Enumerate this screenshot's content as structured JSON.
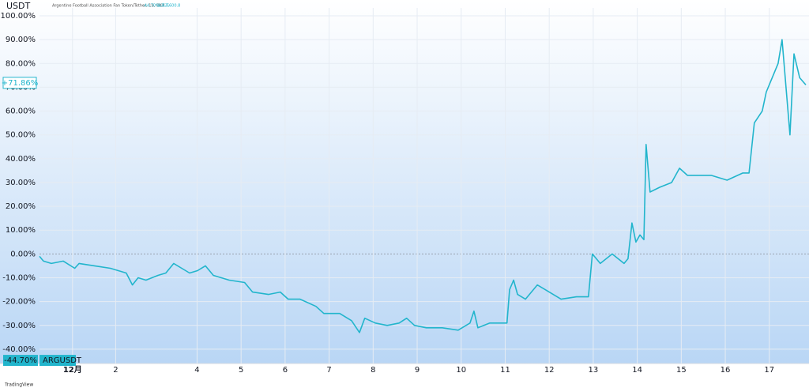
{
  "chart_data": {
    "type": "line",
    "title": "Argentine Football Association Fan Token/Tether, 1S, OKX",
    "volume_text": "出来高600.8",
    "unit": "USDT",
    "watermark": "TradingView",
    "last_value": 71.86,
    "last_label": "+71.86%",
    "compare_value": -44.7,
    "compare_label": "-44.70%",
    "compare_name": "ARGUSDT",
    "xlim": [
      0.42,
      17.83
    ],
    "xticks": [
      {
        "value": 1.17,
        "label": "12月"
      },
      {
        "value": 2.15,
        "label": "2"
      },
      4,
      5,
      6,
      7,
      8,
      9,
      10,
      11,
      12,
      13,
      14,
      15,
      16,
      17
    ],
    "ylim": [
      -46,
      102
    ],
    "yticks": [
      {
        "value": 100,
        "label": "100.00%"
      },
      {
        "value": 90,
        "label": "90.00%"
      },
      {
        "value": 80,
        "label": "80.00%"
      },
      {
        "value": 70,
        "label": "70.00%"
      },
      {
        "value": 60,
        "label": "60.00%"
      },
      {
        "value": 50,
        "label": "50.00%"
      },
      {
        "value": 40,
        "label": "40.00%"
      },
      {
        "value": 30,
        "label": "30.00%"
      },
      {
        "value": 20,
        "label": "20.00%"
      },
      {
        "value": 10,
        "label": "10.00%"
      },
      {
        "value": 0,
        "label": "0.00%"
      },
      {
        "value": -10,
        "label": "-10.00%"
      },
      {
        "value": -20,
        "label": "-20.00%"
      },
      {
        "value": -30,
        "label": "-30.00%"
      },
      {
        "value": -40,
        "label": "-40.00%"
      }
    ],
    "grid": true,
    "x": [
      0.42,
      0.51,
      0.69,
      0.96,
      1.22,
      1.32,
      1.67,
      2.03,
      2.39,
      2.53,
      2.66,
      2.84,
      3.11,
      3.29,
      3.47,
      3.65,
      3.83,
      4.01,
      4.19,
      4.37,
      4.73,
      5.08,
      5.26,
      5.62,
      5.89,
      6.07,
      6.34,
      6.7,
      6.88,
      7.24,
      7.51,
      7.69,
      7.81,
      8.05,
      8.32,
      8.59,
      8.76,
      8.94,
      9.21,
      9.57,
      9.93,
      10.2,
      10.29,
      10.38,
      10.65,
      10.92,
      11.04,
      11.1,
      11.19,
      11.28,
      11.46,
      11.73,
      11.91,
      12.09,
      12.27,
      12.62,
      12.89,
      12.98,
      13.16,
      13.43,
      13.7,
      13.79,
      13.88,
      13.97,
      14.06,
      14.15,
      14.2,
      14.29,
      14.51,
      14.78,
      14.96,
      15.14,
      15.41,
      15.68,
      16.04,
      16.4,
      16.54,
      16.66,
      16.84,
      16.93,
      17.02,
      17.2,
      17.29,
      17.38,
      17.47,
      17.56,
      17.69,
      17.83
    ],
    "series": [
      {
        "color": "#22b5cc",
        "values": [
          -1,
          -3,
          -4,
          -3,
          -6,
          -4,
          -5,
          -6,
          -8,
          -13,
          -10,
          -11,
          -9,
          -8,
          -4,
          -6,
          -8,
          -7,
          -5,
          -9,
          -11,
          -12,
          -16,
          -17,
          -16,
          -19,
          -19,
          -22,
          -25,
          -25,
          -28,
          -33,
          -27,
          -29,
          -30,
          -29,
          -27,
          -30,
          -31,
          -31,
          -32,
          -29,
          -24,
          -31,
          -29,
          -29,
          -29,
          -15,
          -11,
          -17,
          -19,
          -13,
          -15,
          -17,
          -19,
          -18,
          -18,
          0,
          -4,
          0,
          -4,
          -2,
          13,
          5,
          8,
          6,
          46,
          26,
          28,
          30,
          36,
          33,
          33,
          33,
          31,
          34,
          34,
          55,
          60,
          68,
          72,
          80,
          90,
          70,
          50,
          84,
          74,
          71
        ]
      }
    ]
  }
}
